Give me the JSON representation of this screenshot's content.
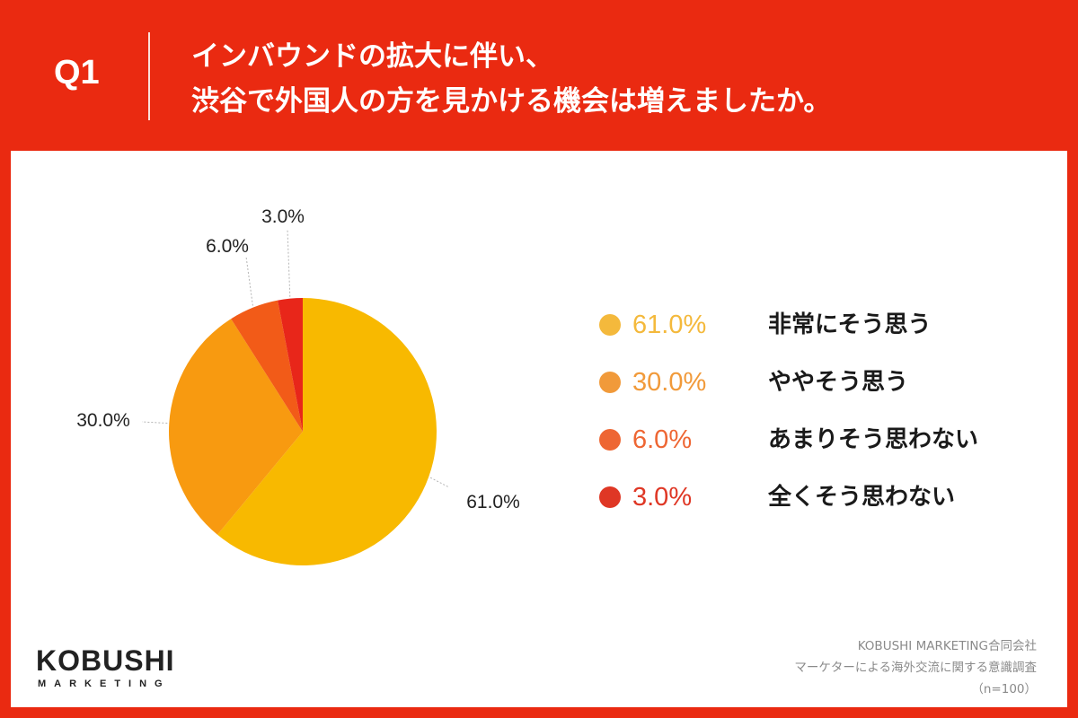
{
  "header": {
    "question_label": "Q1",
    "title_line1": "インバウンドの拡大に伴い、",
    "title_line2": "渋谷で外国人の方を見かける機会は増えましたか。"
  },
  "chart_data": {
    "type": "pie",
    "title": "",
    "labels": [
      "非常にそう思う",
      "ややそう思う",
      "あまりそう思わない",
      "全くそう思わない"
    ],
    "values": [
      61.0,
      30.0,
      6.0,
      3.0
    ],
    "value_labels": [
      "61.0%",
      "30.0%",
      "6.0%",
      "3.0%"
    ],
    "colors": [
      "#f8b900",
      "#f89a10",
      "#f25b18",
      "#e8261a"
    ],
    "start": "12 o'clock, clockwise",
    "legend_position": "right"
  },
  "legend": {
    "items": [
      {
        "value": "61.0%",
        "label": "非常にそう思う",
        "color": "#f4b93c"
      },
      {
        "value": "30.0%",
        "label": "ややそう思う",
        "color": "#f19a3a"
      },
      {
        "value": "6.0%",
        "label": "あまりそう思わない",
        "color": "#ee6633"
      },
      {
        "value": "3.0%",
        "label": "全くそう思わない",
        "color": "#df3725"
      }
    ]
  },
  "footer": {
    "logo_main": "KOBUSHI",
    "logo_sub": "MARKETING",
    "company": "KOBUSHI MARKETING合同会社",
    "survey": "マーケターによる海外交流に関する意識調査",
    "sample": "（n=100）"
  },
  "colors": {
    "background": "#ea2a11",
    "panel": "#ffffff"
  }
}
